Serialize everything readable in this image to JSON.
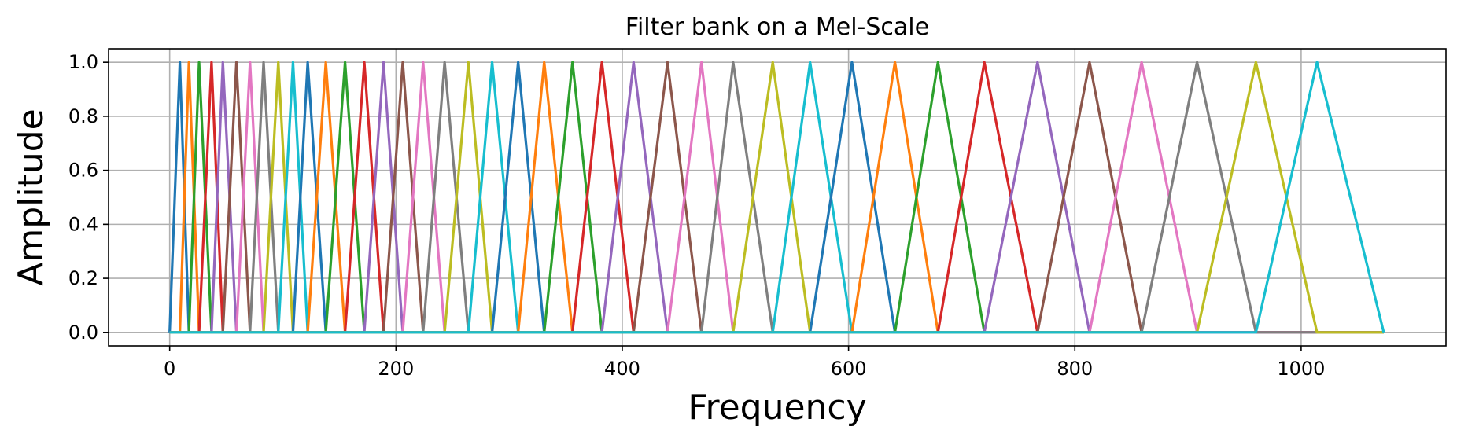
{
  "chart_data": {
    "type": "line",
    "title": "Filter bank on a Mel-Scale",
    "xlabel": "Frequency",
    "ylabel": "Amplitude",
    "xlim": [
      -54,
      1128
    ],
    "ylim": [
      -0.05,
      1.05
    ],
    "xticks": [
      0,
      200,
      400,
      600,
      800,
      1000
    ],
    "yticks": [
      0.0,
      0.2,
      0.4,
      0.6,
      0.8,
      1.0
    ],
    "xtick_labels": [
      "0",
      "200",
      "400",
      "600",
      "800",
      "1000"
    ],
    "ytick_labels": [
      "0.0",
      "0.2",
      "0.4",
      "0.6",
      "0.8",
      "1.0"
    ],
    "grid": true,
    "filter_shape": "triangular",
    "peak_amplitude": 1.0,
    "x_end": 1073,
    "band_edges": [
      0,
      9,
      17,
      26,
      37,
      47,
      59,
      71,
      83,
      96,
      109,
      122,
      138,
      155,
      172,
      189,
      206,
      224,
      243,
      264,
      285,
      308,
      331,
      356,
      382,
      410,
      440,
      470,
      498,
      533,
      566,
      603,
      641,
      679,
      720,
      767,
      813,
      859,
      908,
      960,
      1014,
      1073
    ],
    "palette": [
      "#1f77b4",
      "#ff7f0e",
      "#2ca02c",
      "#d62728",
      "#9467bd",
      "#8c564b",
      "#e377c2",
      "#7f7f7f",
      "#bcbd22",
      "#17becf"
    ]
  }
}
